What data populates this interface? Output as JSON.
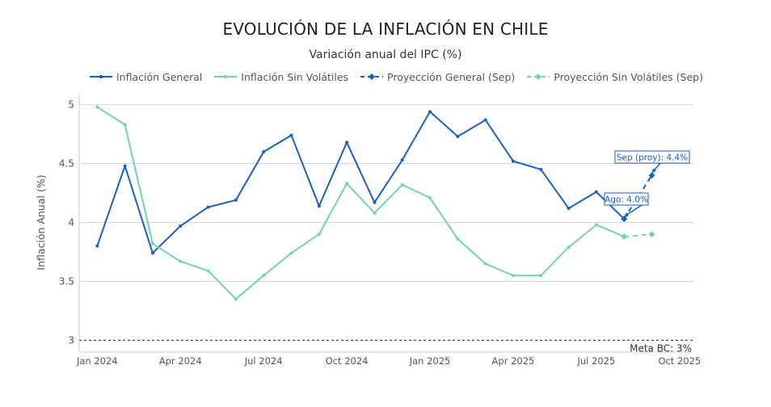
{
  "colors": {
    "general": "#1a5fc8",
    "sin_volatiles": "#72d3ad",
    "grid": "#d9d9d9",
    "meta_line": "#444444"
  },
  "legend": [
    {
      "label": "Inflación General",
      "series": "general",
      "dashed": false,
      "marker": "circle"
    },
    {
      "label": "Inflación Sin Volátiles",
      "series": "sin_volatiles",
      "dashed": false,
      "marker": "circle"
    },
    {
      "label": "Proyección General (Sep)",
      "series": "general",
      "dashed": true,
      "marker": "diamond"
    },
    {
      "label": "Proyección Sin Volátiles (Sep)",
      "series": "sin_volatiles",
      "dashed": true,
      "marker": "diamond"
    }
  ],
  "chart_data": {
    "type": "line",
    "title": "EVOLUCIÓN DE LA INFLACIÓN EN CHILE",
    "subtitle": "Variación anual del IPC (%)",
    "xlabel": "",
    "ylabel": "Inflación Anual (%)",
    "ylim": [
      2.9,
      5.1
    ],
    "yticks": [
      3,
      3.5,
      4,
      4.5,
      5
    ],
    "ytick_labels": [
      "3",
      "3.5",
      "4",
      "4.5",
      "5"
    ],
    "x_range": [
      -0.65,
      21.5
    ],
    "xticks": [
      0,
      3,
      6,
      9,
      12,
      15,
      18,
      21
    ],
    "xtick_labels": [
      "Jan 2024",
      "Apr 2024",
      "Jul 2024",
      "Oct 2024",
      "Jan 2025",
      "Apr 2025",
      "Jul 2025",
      "Oct 2025"
    ],
    "series": [
      {
        "name": "Inflación General",
        "key": "general",
        "x": [
          0,
          1,
          2,
          3,
          4,
          5,
          6,
          7,
          8,
          9,
          10,
          11,
          12,
          13,
          14,
          15,
          16,
          17,
          18,
          19
        ],
        "values": [
          3.8,
          4.48,
          3.74,
          3.97,
          4.13,
          4.19,
          4.6,
          4.74,
          4.14,
          4.68,
          4.17,
          4.53,
          4.94,
          4.73,
          4.87,
          4.52,
          4.45,
          4.12,
          4.26,
          4.03
        ]
      },
      {
        "name": "Inflación Sin Volátiles",
        "key": "sin_volatiles",
        "x": [
          0,
          1,
          2,
          3,
          4,
          5,
          6,
          7,
          8,
          9,
          10,
          11,
          12,
          13,
          14,
          15,
          16,
          17,
          18,
          19
        ],
        "values": [
          4.98,
          4.83,
          3.82,
          3.67,
          3.59,
          3.35,
          3.55,
          3.74,
          3.9,
          4.33,
          4.08,
          4.32,
          4.21,
          3.86,
          3.65,
          3.55,
          3.55,
          3.79,
          3.98,
          3.88
        ]
      },
      {
        "name": "Proyección General (Sep)",
        "key": "general_proj",
        "dashed": true,
        "x": [
          19,
          20
        ],
        "values": [
          4.03,
          4.4
        ]
      },
      {
        "name": "Proyección Sin Volátiles (Sep)",
        "key": "sin_volatiles_proj",
        "dashed": true,
        "x": [
          19,
          20
        ],
        "values": [
          3.88,
          3.9
        ]
      }
    ],
    "reference_line": {
      "value": 3,
      "label": "Meta BC: 3%"
    },
    "annotations": [
      {
        "text": "Ago: 4.0%",
        "x": 19,
        "y": 4.03
      },
      {
        "text": "Sep (proy): 4.4%",
        "x": 20,
        "y": 4.4
      }
    ]
  }
}
